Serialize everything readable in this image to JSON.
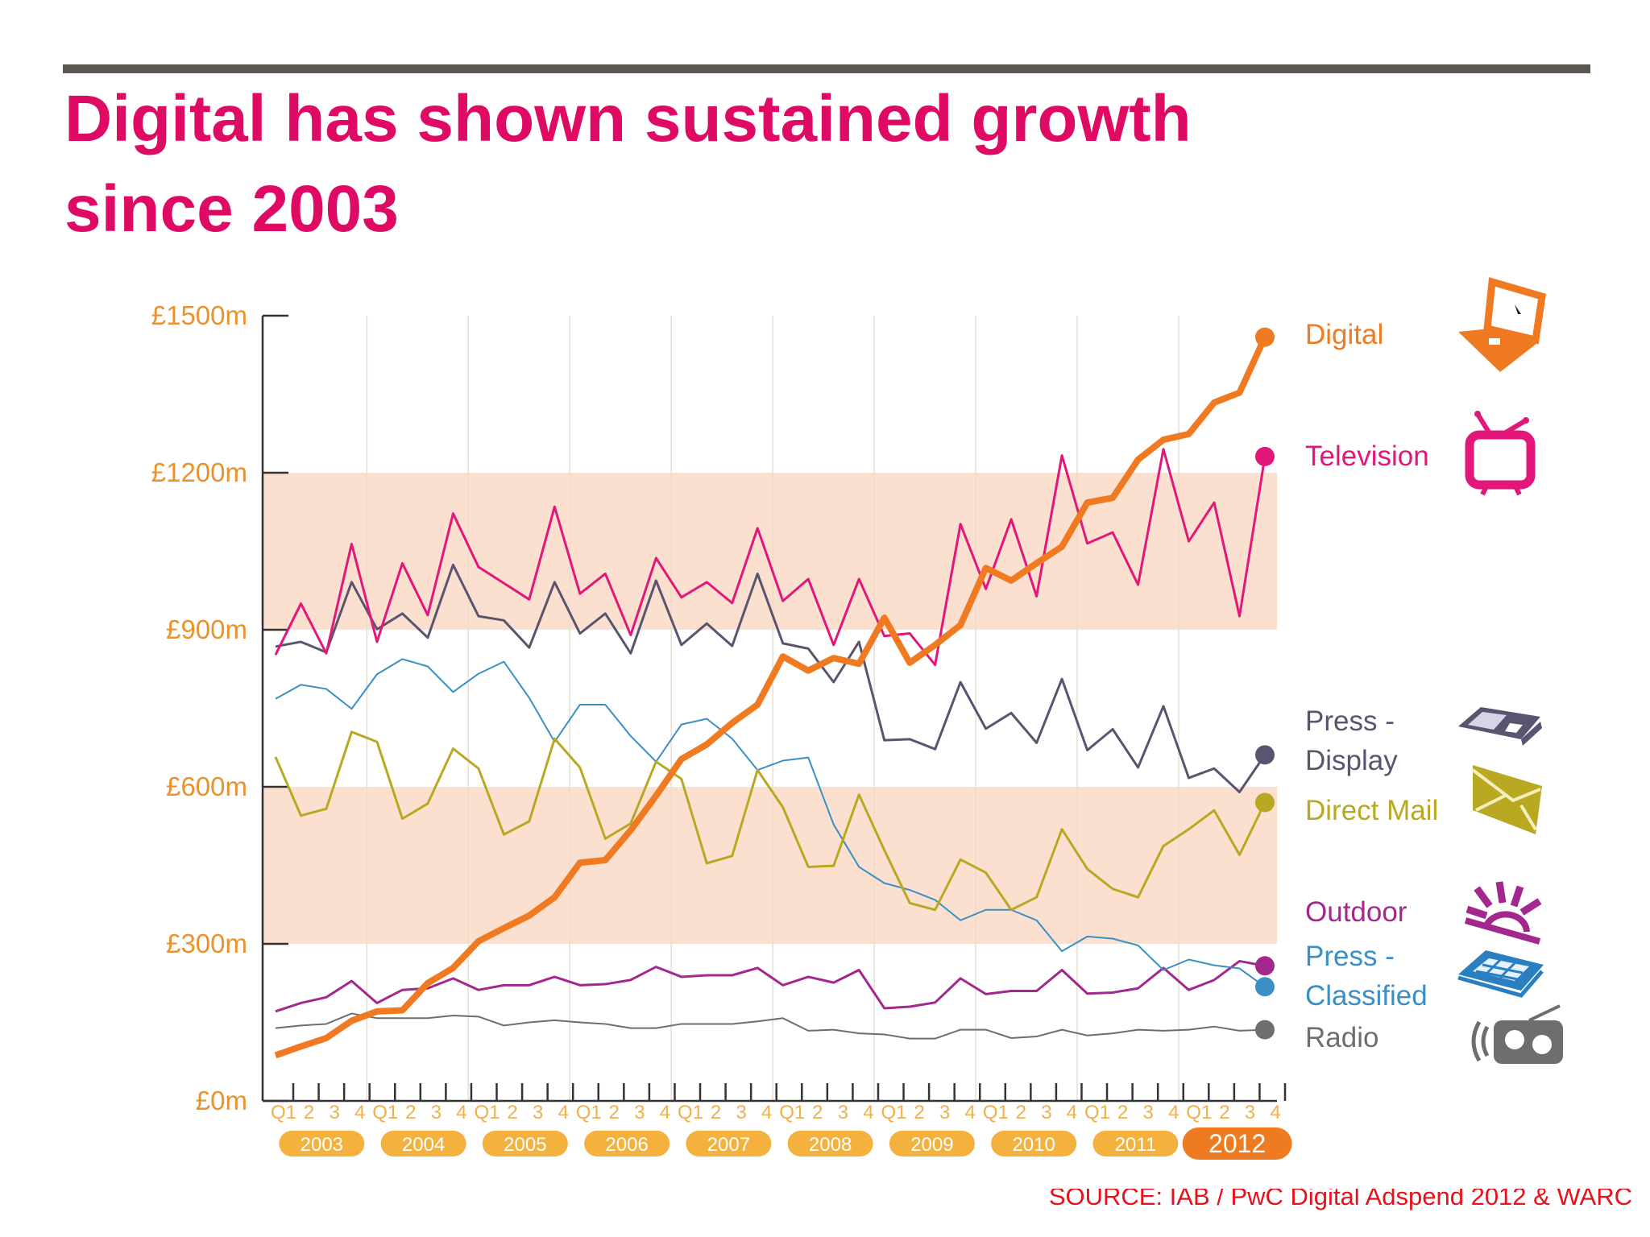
{
  "title": "Digital has shown sustained growth since 2003",
  "source": "SOURCE: IAB / PwC Digital Adspend 2012 & WARC",
  "chart_data": {
    "type": "line",
    "title": "",
    "xlabel": "",
    "ylabel": "",
    "ylim": [
      0,
      1500
    ],
    "yticks": [
      0,
      300,
      600,
      900,
      1200,
      1500
    ],
    "ytick_labels": [
      "£0m",
      "£300m",
      "£600m",
      "£900m",
      "£1200m",
      "£1500m"
    ],
    "shaded_bands": [
      [
        300,
        600
      ],
      [
        900,
        1200
      ]
    ],
    "band_color": "#fbe0cf",
    "quarter_labels": [
      "Q1",
      "2",
      "3",
      "4"
    ],
    "years": [
      "2003",
      "2004",
      "2005",
      "2006",
      "2007",
      "2008",
      "2009",
      "2010",
      "2011",
      "2012"
    ],
    "highlight_year": "2012",
    "x": "quarterly, 2003 Q1 – 2012 Q4",
    "legend_placement": "right",
    "series": [
      {
        "name": "Digital",
        "color": "#f07a22",
        "icon": "laptop-icon",
        "values": [
          87,
          104,
          120,
          153,
          171,
          173,
          225,
          254,
          305,
          330,
          354,
          389,
          455,
          460,
          517,
          583,
          653,
          681,
          722,
          757,
          849,
          822,
          846,
          835,
          923,
          837,
          871,
          909,
          1018,
          994,
          1027,
          1059,
          1143,
          1152,
          1225,
          1263,
          1274,
          1334,
          1353,
          1459
        ]
      },
      {
        "name": "Television",
        "color": "#e3167a",
        "icon": "tv-icon",
        "values": [
          852,
          950,
          855,
          1064,
          877,
          1027,
          928,
          1122,
          1020,
          989,
          958,
          1135,
          969,
          1007,
          890,
          1037,
          962,
          991,
          951,
          1094,
          955,
          997,
          871,
          997,
          888,
          893,
          833,
          1102,
          978,
          1111,
          964,
          1233,
          1065,
          1086,
          986,
          1245,
          1069,
          1143,
          926,
          1231
        ]
      },
      {
        "name": "Press - Display",
        "color": "#5a5470",
        "icon": "newspaper-icon",
        "values": [
          868,
          877,
          857,
          991,
          901,
          931,
          885,
          1024,
          926,
          918,
          866,
          991,
          893,
          931,
          855,
          994,
          871,
          912,
          869,
          1007,
          874,
          864,
          800,
          877,
          689,
          691,
          672,
          800,
          711,
          741,
          684,
          806,
          670,
          710,
          637,
          754,
          617,
          635,
          590,
          661
        ]
      },
      {
        "name": "Direct Mail",
        "color": "#b8a822",
        "icon": "envelope-icon",
        "values": [
          657,
          545,
          558,
          705,
          686,
          539,
          568,
          673,
          635,
          509,
          534,
          692,
          637,
          501,
          530,
          648,
          615,
          454,
          468,
          632,
          561,
          447,
          449,
          585,
          479,
          378,
          365,
          461,
          436,
          365,
          389,
          519,
          443,
          405,
          389,
          487,
          519,
          555,
          470,
          570
        ]
      },
      {
        "name": "Outdoor",
        "color": "#a3288e",
        "icon": "sun-billboard-icon",
        "values": [
          171,
          187,
          198,
          229,
          187,
          212,
          215,
          234,
          212,
          221,
          221,
          237,
          221,
          223,
          231,
          256,
          237,
          240,
          240,
          254,
          221,
          237,
          226,
          250,
          177,
          180,
          188,
          234,
          204,
          210,
          210,
          250,
          205,
          207,
          215,
          254,
          212,
          231,
          267,
          258
        ]
      },
      {
        "name": "Press - Classified",
        "color": "#3b8fc4",
        "icon": "classified-newspaper-icon",
        "values": [
          768,
          795,
          787,
          749,
          815,
          844,
          830,
          781,
          816,
          839,
          770,
          686,
          757,
          757,
          697,
          648,
          719,
          730,
          692,
          632,
          650,
          656,
          528,
          447,
          416,
          403,
          384,
          345,
          365,
          365,
          345,
          286,
          314,
          310,
          297,
          250,
          270,
          259,
          253,
          218
        ]
      },
      {
        "name": "Radio",
        "color": "#6e6e6e",
        "icon": "radio-icon",
        "values": [
          139,
          144,
          147,
          167,
          158,
          158,
          158,
          163,
          161,
          144,
          150,
          154,
          150,
          147,
          139,
          139,
          147,
          147,
          147,
          152,
          158,
          134,
          136,
          129,
          127,
          119,
          119,
          136,
          136,
          120,
          123,
          136,
          125,
          129,
          136,
          134,
          136,
          142,
          134,
          136
        ]
      }
    ],
    "legend_label_lines": {
      "Press - Display": [
        "Press -",
        "Display"
      ],
      "Press - Classified": [
        "Press -",
        "Classified"
      ]
    },
    "axis_label_color": "#e9922e",
    "year_pill_color": "#f4b13e",
    "highlight_pill_color": "#ee7a22"
  }
}
